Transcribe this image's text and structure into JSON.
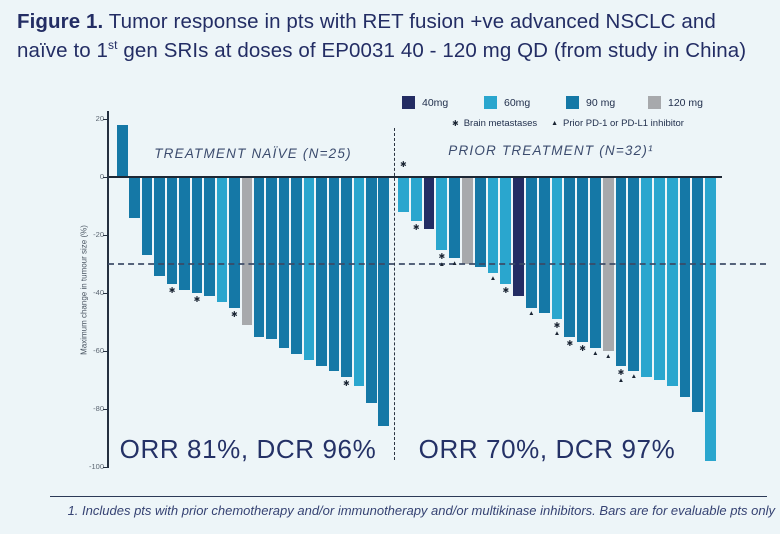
{
  "figure": {
    "title_prefix": "Figure 1.",
    "title_line1": " Tumor response in pts with RET fusion +ve advanced NSCLC and",
    "title_line2_pre": "naïve to 1",
    "title_line2_sup": "st",
    "title_line2_post": " gen SRIs at doses of EP0031 40 - 120 mg QD (from study in China)"
  },
  "legend": {
    "doses": [
      {
        "label": "40mg",
        "color": "#232c63"
      },
      {
        "label": "60mg",
        "color": "#2aa6ce"
      },
      {
        "label": "90 mg",
        "color": "#1578a6"
      },
      {
        "label": "120 mg",
        "color": "#a7a9ac"
      }
    ],
    "symbols": [
      {
        "key": "brain",
        "glyph": "✱",
        "label": "Brain metastases"
      },
      {
        "key": "pd1",
        "glyph": "▲",
        "label": "Prior PD-1 or PD-L1 inhibitor"
      }
    ]
  },
  "chart_data": {
    "type": "bar",
    "subtype": "waterfall",
    "ylabel": "Maximum change in tumour size (%)",
    "ylim": [
      -100,
      20
    ],
    "yticks": [
      20,
      0,
      -20,
      -40,
      -60,
      -80,
      -100
    ],
    "reference_line": -30,
    "groups": [
      {
        "label": "TREATMENT NAÏVE (N=25)",
        "summary": "ORR 81%, DCR 96%",
        "bars": [
          {
            "value": 18,
            "dose": "90mg"
          },
          {
            "value": -14,
            "dose": "90mg"
          },
          {
            "value": -27,
            "dose": "90mg"
          },
          {
            "value": -34,
            "dose": "90mg"
          },
          {
            "value": -37,
            "dose": "90mg",
            "markers": [
              "brain"
            ]
          },
          {
            "value": -39,
            "dose": "90mg"
          },
          {
            "value": -40,
            "dose": "90mg",
            "markers": [
              "brain"
            ]
          },
          {
            "value": -41,
            "dose": "90mg"
          },
          {
            "value": -43,
            "dose": "60mg"
          },
          {
            "value": -45,
            "dose": "90mg",
            "markers": [
              "brain"
            ]
          },
          {
            "value": -51,
            "dose": "120mg"
          },
          {
            "value": -55,
            "dose": "90mg"
          },
          {
            "value": -56,
            "dose": "90mg"
          },
          {
            "value": -59,
            "dose": "90mg"
          },
          {
            "value": -61,
            "dose": "90mg"
          },
          {
            "value": -63,
            "dose": "60mg"
          },
          {
            "value": -65,
            "dose": "90mg"
          },
          {
            "value": -67,
            "dose": "90mg"
          },
          {
            "value": -69,
            "dose": "90mg",
            "markers": [
              "brain"
            ]
          },
          {
            "value": -72,
            "dose": "60mg"
          },
          {
            "value": -78,
            "dose": "90mg"
          },
          {
            "value": -86,
            "dose": "90mg"
          }
        ]
      },
      {
        "label": "PRIOR TREATMENT (N=32)¹",
        "summary": "ORR 70%, DCR 97%",
        "bars": [
          {
            "value": -12,
            "dose": "60mg",
            "markers": [
              "brain"
            ],
            "marker_position": "above"
          },
          {
            "value": -15,
            "dose": "60mg",
            "markers": [
              "brain"
            ]
          },
          {
            "value": -18,
            "dose": "40mg"
          },
          {
            "value": -25,
            "dose": "60mg",
            "markers": [
              "brain",
              "pd1"
            ]
          },
          {
            "value": -28,
            "dose": "90mg",
            "markers": [
              "pd1"
            ]
          },
          {
            "value": -30,
            "dose": "120mg"
          },
          {
            "value": -31,
            "dose": "90mg"
          },
          {
            "value": -33,
            "dose": "60mg",
            "markers": [
              "pd1"
            ]
          },
          {
            "value": -37,
            "dose": "60mg",
            "markers": [
              "brain"
            ]
          },
          {
            "value": -41,
            "dose": "40mg"
          },
          {
            "value": -45,
            "dose": "90mg",
            "markers": [
              "pd1"
            ]
          },
          {
            "value": -47,
            "dose": "90mg"
          },
          {
            "value": -49,
            "dose": "60mg",
            "markers": [
              "brain",
              "pd1"
            ]
          },
          {
            "value": -55,
            "dose": "90mg",
            "markers": [
              "brain"
            ]
          },
          {
            "value": -57,
            "dose": "90mg",
            "markers": [
              "brain"
            ]
          },
          {
            "value": -59,
            "dose": "90mg",
            "markers": [
              "pd1"
            ]
          },
          {
            "value": -60,
            "dose": "120mg",
            "markers": [
              "pd1"
            ]
          },
          {
            "value": -65,
            "dose": "90mg",
            "markers": [
              "brain",
              "pd1"
            ]
          },
          {
            "value": -67,
            "dose": "90mg",
            "markers": [
              "pd1"
            ]
          },
          {
            "value": -69,
            "dose": "60mg"
          },
          {
            "value": -70,
            "dose": "60mg"
          },
          {
            "value": -72,
            "dose": "60mg"
          },
          {
            "value": -76,
            "dose": "90mg"
          },
          {
            "value": -81,
            "dose": "90mg"
          },
          {
            "value": -98,
            "dose": "60mg"
          }
        ]
      }
    ]
  },
  "footnote": "1. Includes pts with prior chemotherapy and/or immunotherapy and/or multikinase inhibitors. Bars are for evaluable pts only"
}
